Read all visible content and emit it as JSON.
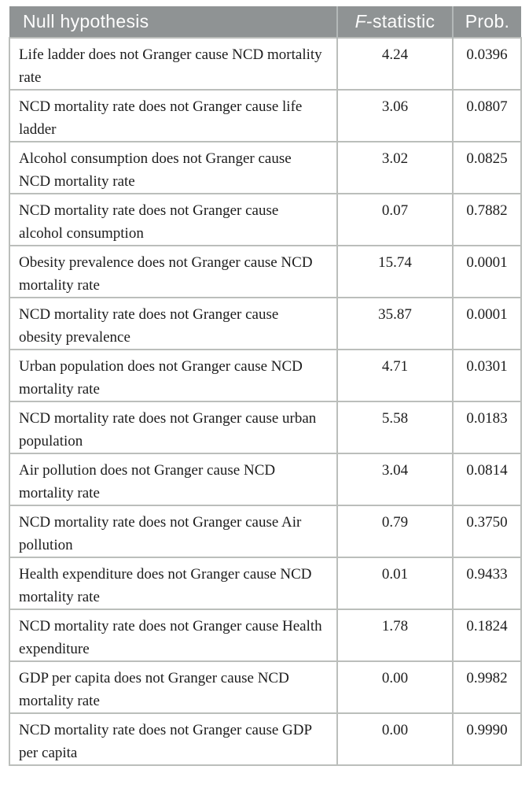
{
  "table": {
    "columns": [
      {
        "label": "Null hypothesis",
        "align": "left"
      },
      {
        "label_italic": "F",
        "label_rest": "-statistic",
        "align": "center"
      },
      {
        "label": "Prob.",
        "align": "center"
      }
    ],
    "rows": [
      {
        "hypothesis": "Life ladder does not Granger cause NCD mortality rate",
        "f_statistic": "4.24",
        "prob": "0.0396"
      },
      {
        "hypothesis": "NCD mortality rate does not Granger cause life ladder",
        "f_statistic": "3.06",
        "prob": "0.0807"
      },
      {
        "hypothesis": "Alcohol consumption does not Granger cause NCD mortality rate",
        "f_statistic": "3.02",
        "prob": "0.0825"
      },
      {
        "hypothesis": "NCD mortality rate does not Granger cause alcohol consumption",
        "f_statistic": "0.07",
        "prob": "0.7882"
      },
      {
        "hypothesis": "Obesity prevalence does not Granger cause NCD mortality rate",
        "f_statistic": "15.74",
        "prob": "0.0001"
      },
      {
        "hypothesis": "NCD mortality rate does not Granger cause obesity prevalence",
        "f_statistic": "35.87",
        "prob": "0.0001"
      },
      {
        "hypothesis": "Urban population does not Granger cause NCD mortality rate",
        "f_statistic": "4.71",
        "prob": "0.0301"
      },
      {
        "hypothesis": "NCD mortality rate does not Granger cause urban population",
        "f_statistic": "5.58",
        "prob": "0.0183"
      },
      {
        "hypothesis": "Air pollution does not Granger cause NCD mortality rate",
        "f_statistic": "3.04",
        "prob": "0.0814"
      },
      {
        "hypothesis": "NCD mortality rate does not Granger cause Air pollution",
        "f_statistic": "0.79",
        "prob": "0.3750"
      },
      {
        "hypothesis": "Health expenditure does not Granger cause NCD mortality rate",
        "f_statistic": "0.01",
        "prob": "0.9433"
      },
      {
        "hypothesis": "NCD mortality rate does not Granger cause Health expenditure",
        "f_statistic": "1.78",
        "prob": "0.1824"
      },
      {
        "hypothesis": "GDP per capita does not Granger cause NCD mortality rate",
        "f_statistic": "0.00",
        "prob": "0.9982"
      },
      {
        "hypothesis": "NCD mortality rate does not Granger cause GDP per capita",
        "f_statistic": "0.00",
        "prob": "0.9990"
      }
    ]
  },
  "colors": {
    "page_bg": "#ffffff",
    "header_bg": "#8f9394",
    "header_text": "#fdfdfd",
    "header_divider": "#b3b8b8",
    "border": "#bbbebb",
    "row_bg": "#ffffff",
    "body_text": "#1c1c1c"
  }
}
